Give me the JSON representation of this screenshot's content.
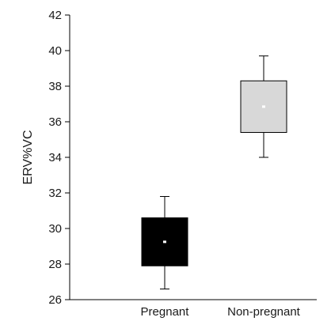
{
  "chart_data": {
    "type": "box",
    "title": "",
    "xlabel": "",
    "ylabel": "ERV%VC",
    "ylim": [
      26,
      42
    ],
    "yticks": [
      26,
      28,
      30,
      32,
      34,
      36,
      38,
      40,
      42
    ],
    "grid": false,
    "categories": [
      "Pregnant",
      "Non-pregnant"
    ],
    "boxes": [
      {
        "category": "Pregnant",
        "whisker_low": 26.6,
        "q1": 27.9,
        "median": 29.25,
        "q3": 30.6,
        "whisker_high": 31.8,
        "fill": "#000000",
        "marker_color": "#ffffff"
      },
      {
        "category": "Non-pregnant",
        "whisker_low": 34.0,
        "q1": 35.4,
        "median": 36.85,
        "q3": 38.3,
        "whisker_high": 39.7,
        "fill": "#d8d8d8",
        "marker_color": "#ffffff"
      }
    ]
  }
}
